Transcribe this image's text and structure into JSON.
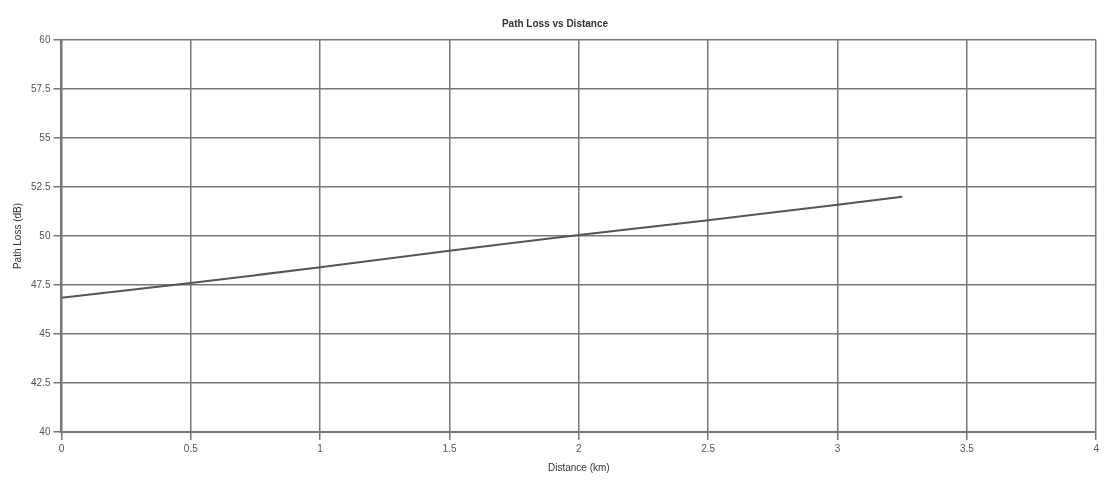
{
  "chart_data": {
    "type": "line",
    "title": "Path Loss vs Distance",
    "xlabel": "Distance (km)",
    "ylabel": "Path Loss (dB)",
    "x": [
      0,
      0.5,
      1,
      1.5,
      2,
      2.5,
      3,
      3.25
    ],
    "series": [
      {
        "color": "#555555",
        "values": [
          46.85,
          47.6,
          48.4,
          49.25,
          50.05,
          50.8,
          51.6,
          52.0
        ]
      }
    ],
    "xlim": [
      0,
      4
    ],
    "xticks": [
      0,
      0.5,
      1,
      1.5,
      2,
      2.5,
      3,
      3.5,
      4
    ],
    "ylim": [
      40,
      60
    ],
    "yticks": [
      40,
      42.5,
      45,
      47.5,
      50,
      52.5,
      55,
      57.5,
      60
    ],
    "grid": true,
    "legend": false,
    "marker": "none",
    "line_style": "solid"
  }
}
